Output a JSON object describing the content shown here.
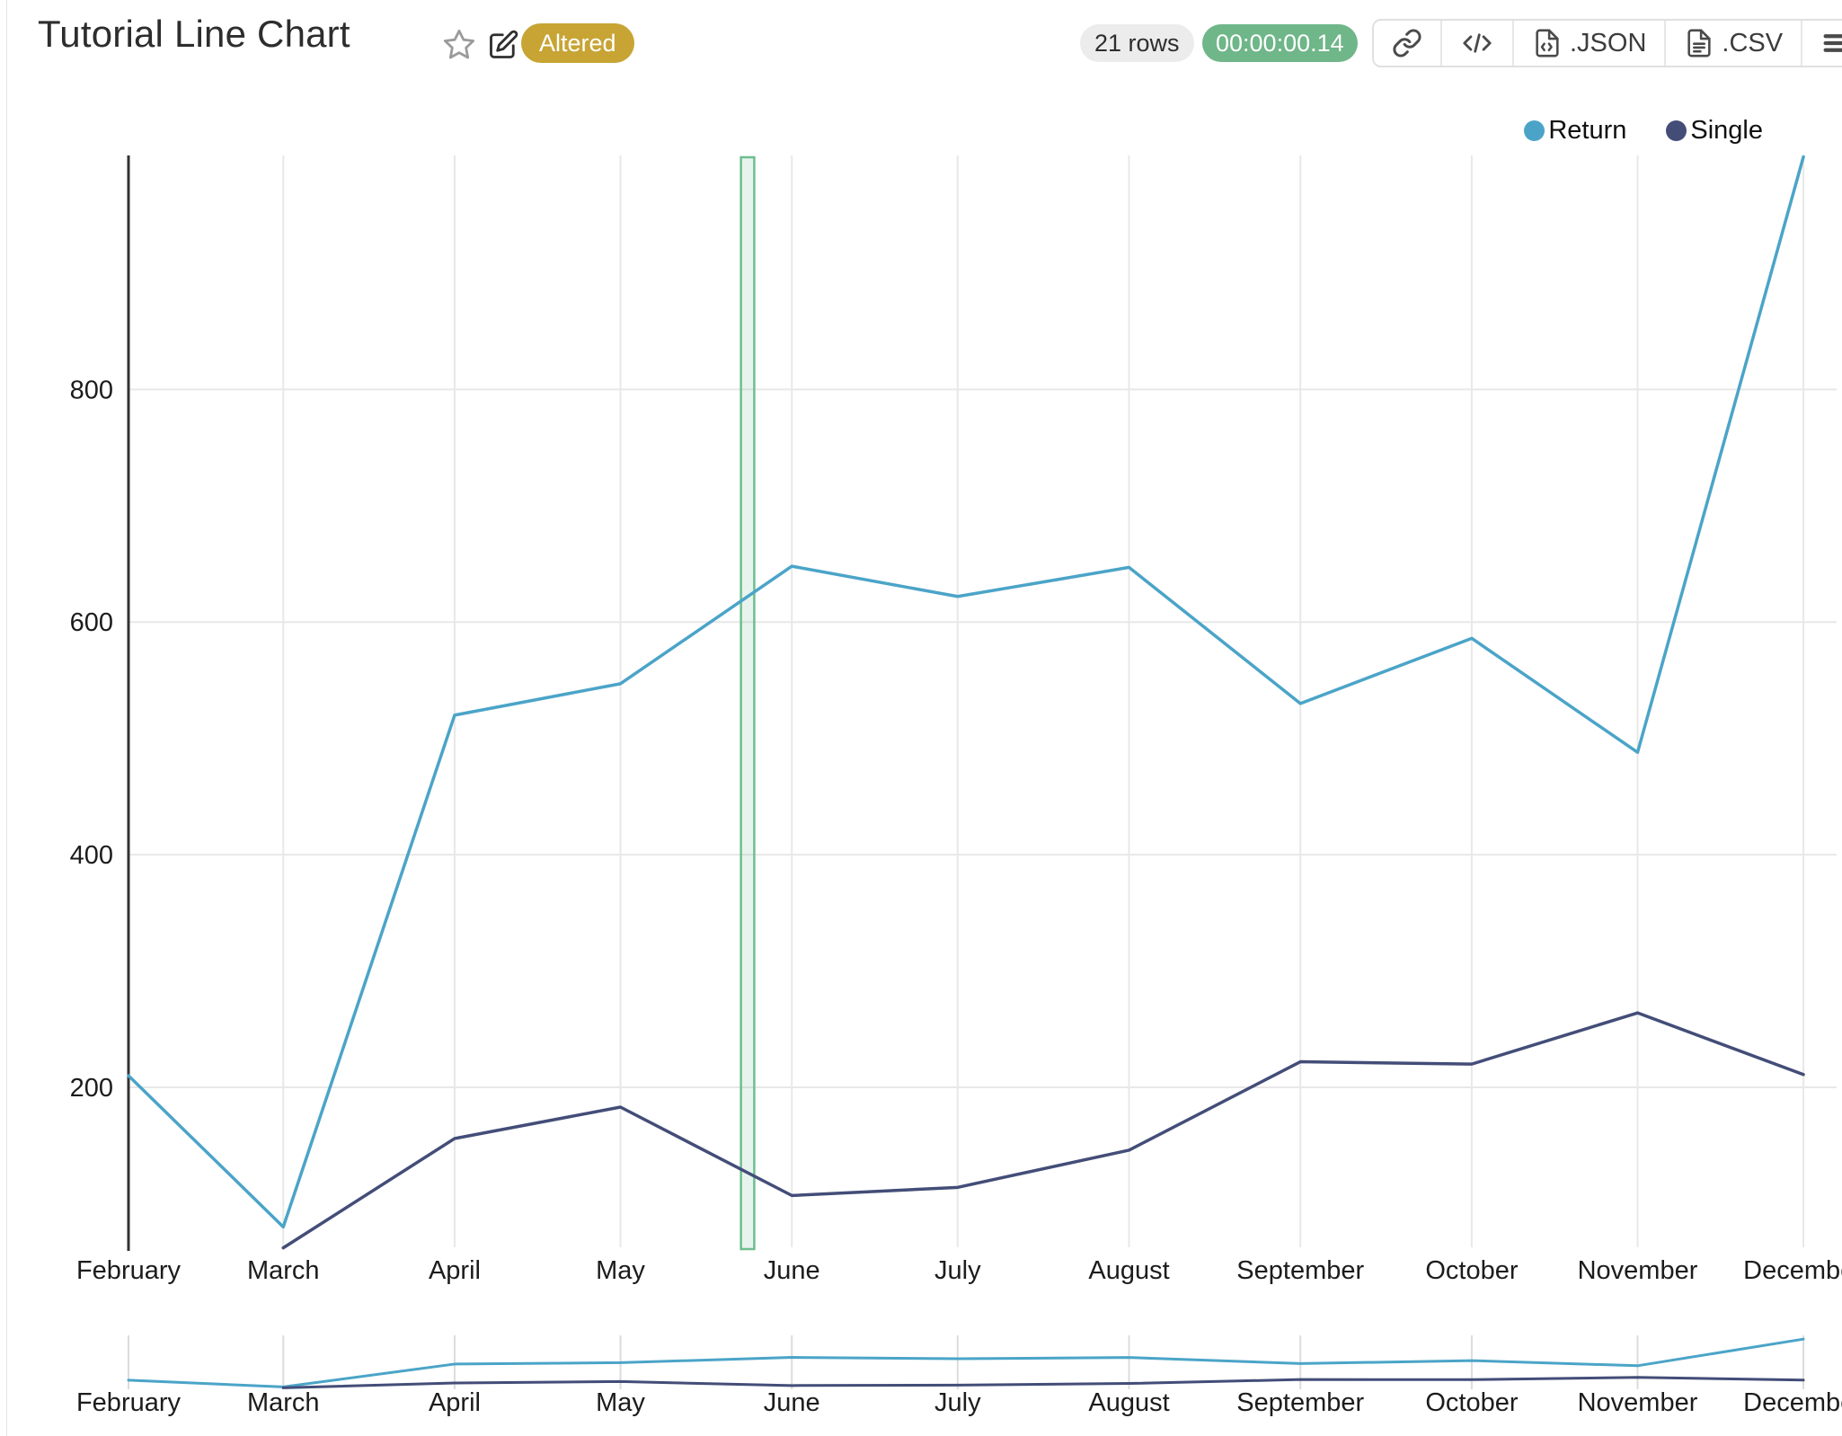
{
  "header": {
    "title": "Tutorial Line Chart",
    "badge": "Altered",
    "row_count": "21 rows",
    "exec_time": "00:00:00.14"
  },
  "toolbar": {
    "buttons": [
      {
        "id": "permalink",
        "label": ""
      },
      {
        "id": "embed-code",
        "label": ""
      },
      {
        "id": "export-json",
        "label": ".JSON"
      },
      {
        "id": "export-csv",
        "label": ".CSV"
      },
      {
        "id": "menu",
        "label": ""
      }
    ]
  },
  "legend": [
    {
      "label": "Return",
      "color": "#4ba4c8"
    },
    {
      "label": "Single",
      "color": "#434d78"
    }
  ],
  "colors": {
    "badge_bg": "#c7a434",
    "timer_bg": "#6fb689",
    "grid": "#e8e8e8",
    "axis": "#333333",
    "tick_text": "#1c1c1c",
    "band_border": "#6fbd8f",
    "band_fill": "rgba(108,189,142,0.16)"
  },
  "chart_data": {
    "type": "line",
    "title": "Tutorial Line Chart",
    "x_axis": {
      "type": "time",
      "tick_labels": [
        "February",
        "March",
        "April",
        "May",
        "June",
        "July",
        "August",
        "September",
        "October",
        "November",
        "December"
      ],
      "month_day_offsets": [
        0,
        28,
        59,
        89,
        120,
        150,
        181,
        212,
        243,
        273,
        303
      ]
    },
    "y_axis": {
      "ticks": [
        200,
        400,
        600,
        800
      ],
      "min": 62,
      "max": 1001,
      "grid": true
    },
    "series": [
      {
        "name": "Return",
        "color": "#4ba4c8",
        "values": [
          210,
          80,
          520,
          547,
          648,
          622,
          647,
          530,
          586,
          488,
          1000
        ]
      },
      {
        "name": "Single",
        "color": "#434d78",
        "values": [
          null,
          62,
          156,
          183,
          107,
          114,
          146,
          222,
          220,
          264,
          211
        ]
      }
    ],
    "highlight_band": {
      "day_offset": 112,
      "span_days": 2.4
    },
    "navigator": {
      "present": true,
      "tick_labels": [
        "February",
        "March",
        "April",
        "May",
        "June",
        "July",
        "August",
        "September",
        "October",
        "November",
        "December"
      ]
    }
  }
}
